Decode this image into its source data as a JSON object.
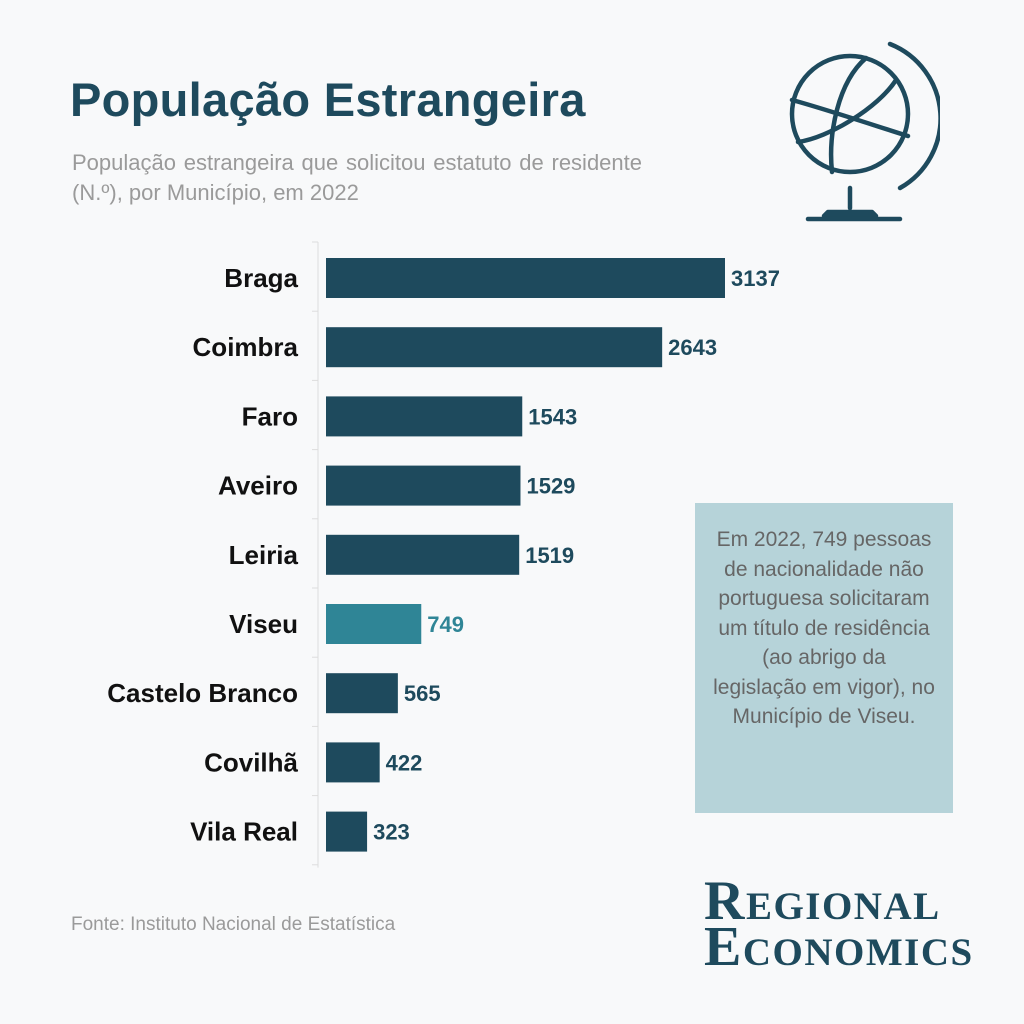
{
  "header": {
    "title": "População Estrangeira",
    "subtitle": "População estrangeira que solicitou estatuto de residente (N.º), por Município, em 2022"
  },
  "chart_data": {
    "type": "bar",
    "orientation": "horizontal",
    "title": "População Estrangeira",
    "subtitle": "População estrangeira que solicitou estatuto de residente (N.º), por Município, em 2022",
    "xlabel": "",
    "ylabel": "",
    "xlim": [
      0,
      3137
    ],
    "grid": false,
    "categories": [
      "Braga",
      "Coimbra",
      "Faro",
      "Aveiro",
      "Leiria",
      "Viseu",
      "Castelo Branco",
      "Covilhã",
      "Vila Real"
    ],
    "values": [
      3137,
      2643,
      1543,
      1529,
      1519,
      749,
      565,
      422,
      323
    ],
    "highlight": "Viseu",
    "colors": {
      "default": "#1e4a5d",
      "highlight": "#2f8596"
    }
  },
  "callout": {
    "text": "Em 2022, 749 pessoas de nacionalidade não portuguesa solicitaram um título de residência (ao abrigo da legislação em vigor), no Município de Viseu."
  },
  "footer": {
    "source": "Fonte: Instituto Nacional de Estatística"
  },
  "logo": {
    "line1": "Regional",
    "line2": "Economics"
  },
  "icons": {
    "globe": "globe-icon"
  }
}
